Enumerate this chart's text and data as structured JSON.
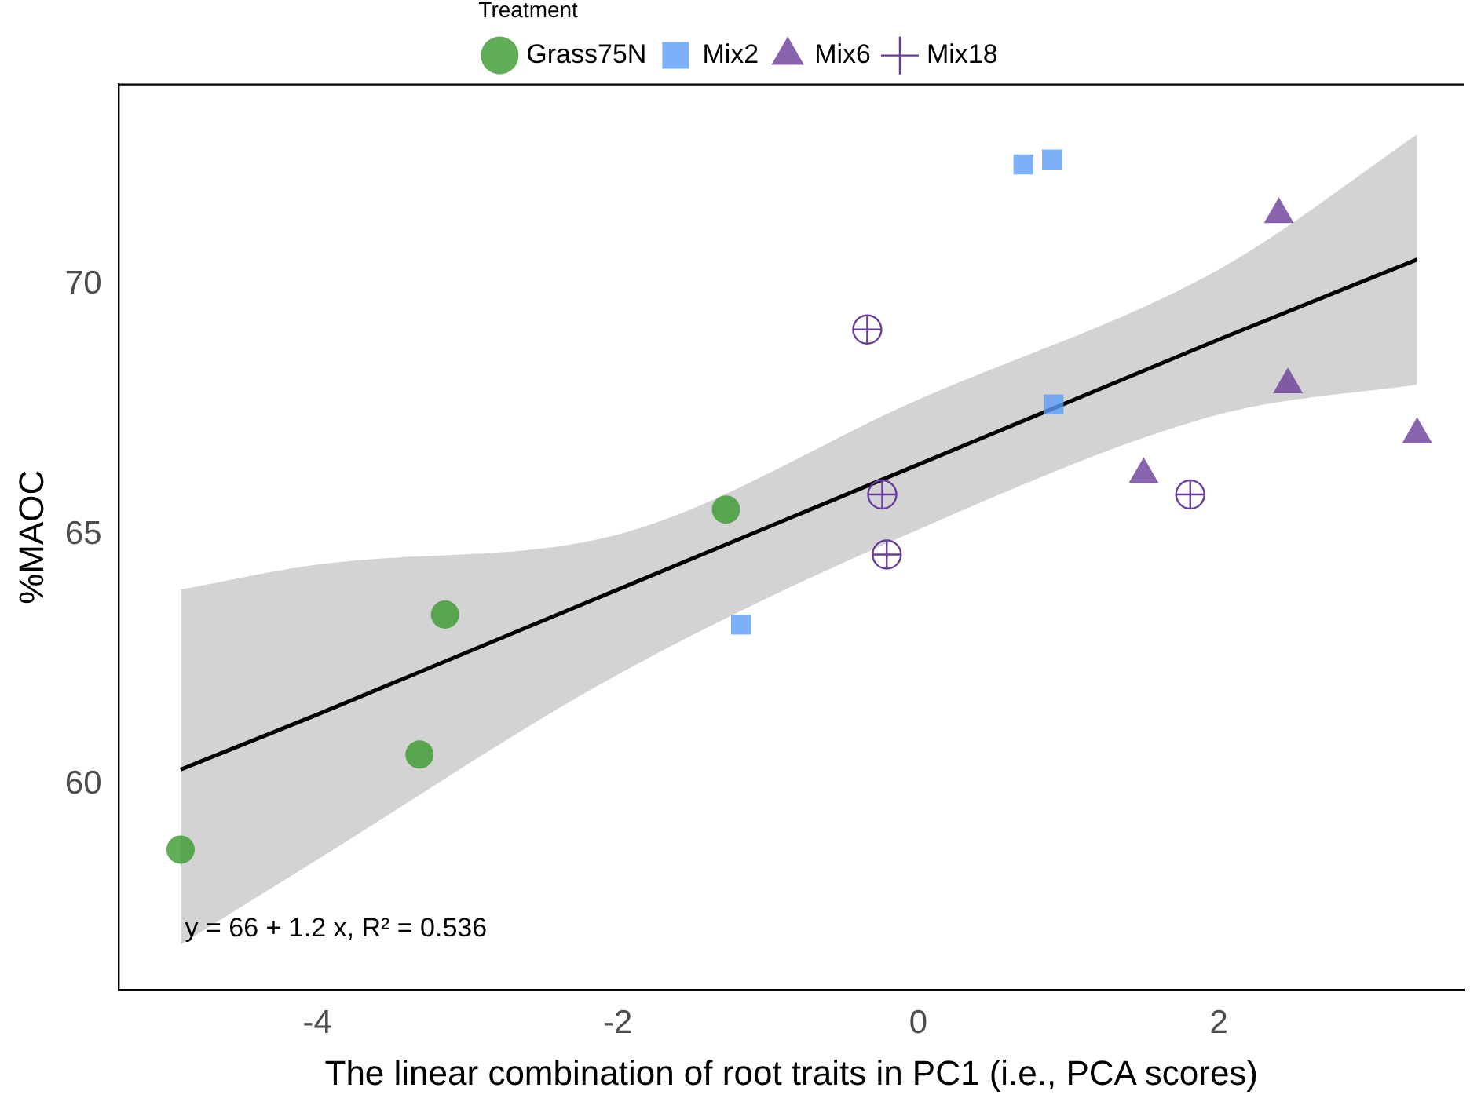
{
  "chart_data": {
    "type": "scatter",
    "xlabel": "The linear combination of root traits in PC1 (i.e., PCA scores)",
    "ylabel": "%MAOC",
    "legend_title": "Treatment",
    "legend": "top",
    "grid": false,
    "xlim": [
      -5.32,
      3.63
    ],
    "ylim": [
      55.9,
      74
    ],
    "xticks": [
      -4,
      -2,
      0,
      2
    ],
    "yticks": [
      60,
      65,
      70
    ],
    "annotations": [
      "y = 66 + 1.2 x, R² = 0.536"
    ],
    "series": [
      {
        "name": "Grass75N",
        "color": "#3a9a30",
        "marker": "circle",
        "x": [
          -4.91,
          -3.32,
          -3.15,
          -1.28
        ],
        "values": [
          58.7,
          60.6,
          63.4,
          65.5
        ]
      },
      {
        "name": "Mix2",
        "color": "#5b9cf6",
        "marker": "square",
        "x": [
          0.7,
          0.89,
          0.9,
          -1.18
        ],
        "values": [
          72.4,
          72.5,
          67.6,
          63.2
        ]
      },
      {
        "name": "Mix6",
        "color": "#6a3d9a",
        "marker": "triangle",
        "x": [
          2.4,
          2.46,
          1.5,
          3.32
        ],
        "values": [
          71.4,
          68.0,
          66.2,
          67.0
        ]
      },
      {
        "name": "Mix18",
        "color": "#6a3d9a",
        "marker": "cross",
        "x": [
          -0.34,
          -0.24,
          -0.21,
          1.81
        ],
        "values": [
          69.1,
          65.8,
          64.6,
          65.8
        ]
      },
      {
        "type": "line",
        "color": "#000000",
        "marker": "none",
        "x": [
          -4.91,
          -4,
          -2,
          0,
          2,
          3.32
        ],
        "values": [
          60.3,
          61.4,
          63.9,
          66.4,
          68.9,
          70.5
        ],
        "lower": [
          56.8,
          58.5,
          62.2,
          65.1,
          67.4,
          68.0
        ],
        "upper": [
          63.9,
          64.4,
          65.0,
          67.7,
          70.3,
          73.0
        ]
      }
    ]
  }
}
